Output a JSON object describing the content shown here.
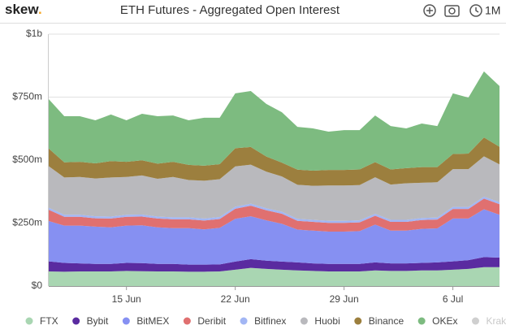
{
  "header": {
    "logo": "skew",
    "logo_dot": ".",
    "range": "1M"
  },
  "chart_data": {
    "type": "stacked-area",
    "title": "ETH Futures - Aggregated Open Interest",
    "x": [
      "10 Jun",
      "11 Jun",
      "12 Jun",
      "13 Jun",
      "14 Jun",
      "15 Jun",
      "16 Jun",
      "17 Jun",
      "18 Jun",
      "19 Jun",
      "20 Jun",
      "21 Jun",
      "22 Jun",
      "23 Jun",
      "24 Jun",
      "25 Jun",
      "26 Jun",
      "27 Jun",
      "28 Jun",
      "29 Jun",
      "30 Jun",
      "1 Jul",
      "2 Jul",
      "3 Jul",
      "4 Jul",
      "5 Jul",
      "6 Jul",
      "7 Jul",
      "8 Jul",
      "9 Jul"
    ],
    "xticks": [
      "15 Jun",
      "22 Jun",
      "29 Jun",
      "6 Jul"
    ],
    "ylim": [
      0,
      1000
    ],
    "yticks": [
      {
        "value": 0,
        "label": "$0"
      },
      {
        "value": 250,
        "label": "$250m"
      },
      {
        "value": 500,
        "label": "$500m"
      },
      {
        "value": 750,
        "label": "$750m"
      },
      {
        "value": 1000,
        "label": "$1b"
      }
    ],
    "grid": true,
    "legend": "bottom",
    "series": [
      {
        "name": "FTX",
        "color": "#a9d6b2",
        "values": [
          58,
          57,
          58,
          58,
          58,
          60,
          59,
          58,
          58,
          57,
          57,
          58,
          65,
          72,
          68,
          65,
          62,
          60,
          58,
          58,
          58,
          62,
          60,
          60,
          62,
          62,
          65,
          68,
          75,
          75
        ]
      },
      {
        "name": "Bybit",
        "color": "#5a2ba0",
        "values": [
          40,
          35,
          32,
          30,
          30,
          32,
          32,
          30,
          30,
          28,
          28,
          28,
          32,
          35,
          33,
          32,
          32,
          30,
          30,
          30,
          30,
          32,
          30,
          30,
          30,
          32,
          33,
          35,
          40,
          38
        ]
      },
      {
        "name": "BitMEX",
        "color": "#8690f2",
        "values": [
          160,
          148,
          150,
          148,
          145,
          148,
          150,
          145,
          142,
          145,
          140,
          145,
          170,
          170,
          160,
          150,
          130,
          130,
          128,
          128,
          130,
          150,
          130,
          130,
          135,
          135,
          170,
          165,
          190,
          170
        ]
      },
      {
        "name": "Deribit",
        "color": "#e07070",
        "values": [
          45,
          35,
          35,
          33,
          35,
          35,
          35,
          35,
          35,
          35,
          35,
          35,
          40,
          42,
          40,
          40,
          35,
          35,
          35,
          35,
          35,
          35,
          35,
          35,
          35,
          35,
          38,
          38,
          42,
          42
        ]
      },
      {
        "name": "Bitfinex",
        "color": "#a2b6f4",
        "values": [
          8,
          8,
          8,
          8,
          8,
          8,
          8,
          8,
          8,
          8,
          8,
          8,
          8,
          8,
          8,
          8,
          8,
          8,
          8,
          8,
          8,
          8,
          8,
          8,
          8,
          8,
          8,
          8,
          8,
          8
        ]
      },
      {
        "name": "Huobi",
        "color": "#b9b9bd",
        "values": [
          165,
          148,
          150,
          150,
          155,
          150,
          155,
          150,
          160,
          148,
          150,
          150,
          160,
          155,
          145,
          140,
          135,
          135,
          140,
          140,
          140,
          145,
          140,
          145,
          140,
          140,
          150,
          150,
          160,
          150
        ]
      },
      {
        "name": "Binance",
        "color": "#9c7f3e",
        "values": [
          70,
          60,
          60,
          60,
          65,
          60,
          60,
          60,
          60,
          60,
          60,
          60,
          72,
          70,
          60,
          55,
          60,
          60,
          62,
          62,
          62,
          60,
          60,
          60,
          62,
          60,
          60,
          62,
          75,
          70
        ]
      },
      {
        "name": "OKEx",
        "color": "#7dbb80",
        "values": [
          196,
          183,
          181,
          171,
          185,
          165,
          185,
          188,
          184,
          177,
          190,
          184,
          218,
          222,
          209,
          200,
          170,
          168,
          152,
          158,
          156,
          185,
          172,
          158,
          173,
          163,
          241,
          222,
          262,
          241
        ]
      },
      {
        "name": "Kraken",
        "color": "#cfcfcf",
        "visible": false
      }
    ]
  }
}
